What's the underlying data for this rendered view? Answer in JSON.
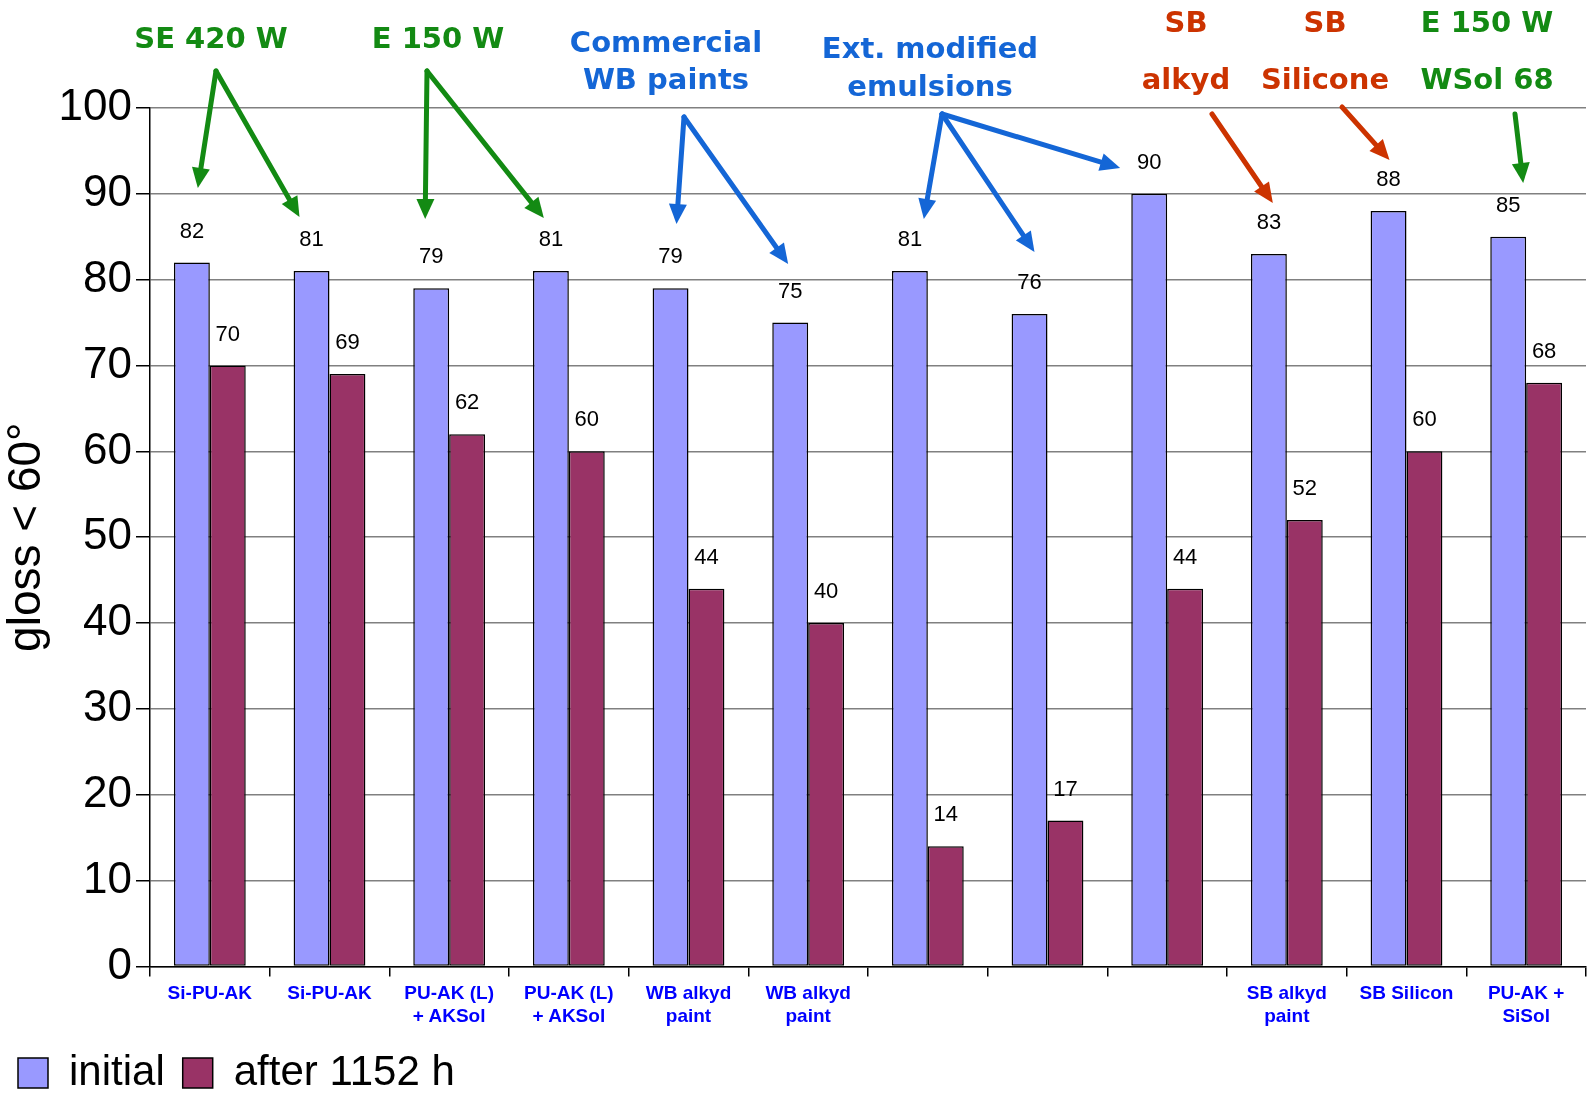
{
  "chart_data": {
    "type": "bar",
    "ylabel": "gloss < 60°",
    "categories": [
      "Si-PU-AK",
      "Si-PU-AK",
      "PU-AK (L) + AKSol",
      "PU-AK (L) + AKSol",
      "WB alkyd paint",
      "WB alkyd paint",
      null,
      null,
      null,
      "SB alkyd paint",
      "SB Silicon",
      "PU-AK + SiSol"
    ],
    "series": [
      {
        "name": "initial",
        "color": "#9999ff",
        "values": [
          82,
          81,
          79,
          81,
          79,
          75,
          81,
          76,
          90,
          83,
          88,
          85
        ]
      },
      {
        "name": "after 1152 h",
        "color": "#993366",
        "values": [
          70,
          69,
          62,
          60,
          44,
          40,
          14,
          17,
          44,
          52,
          60,
          68
        ]
      }
    ],
    "ylim": [
      0,
      100
    ],
    "yticks": [
      0,
      10,
      20,
      30,
      40,
      50,
      60,
      70,
      80,
      90,
      100
    ],
    "grid": "y",
    "legend": "bottom left",
    "data_labels": true,
    "annotations": [
      "SE 420 W",
      "E 150 W",
      "Commercial\nWB paints",
      "Ext. modified\nemulsions",
      "SB\nalkyd",
      "SB\nSilicone",
      "E 150 W\nWSol 68"
    ]
  }
}
